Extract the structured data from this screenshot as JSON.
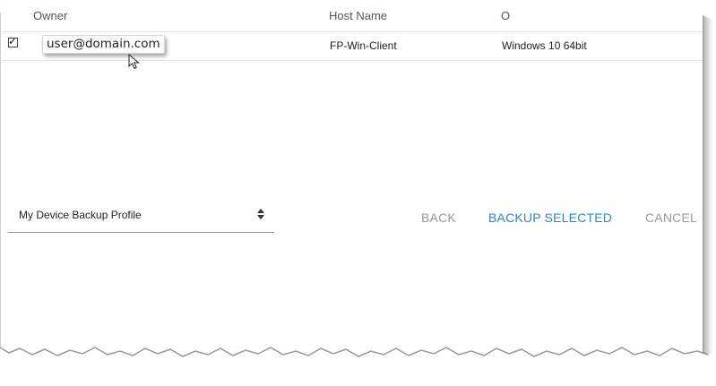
{
  "table": {
    "headers": {
      "owner": "Owner",
      "host_name": "Host Name",
      "os": "O"
    },
    "rows": [
      {
        "checked": true,
        "owner": "user@domain.com",
        "host_name": "FP-Win-Client",
        "os": "Windows 10 64bit"
      }
    ]
  },
  "profile_select": {
    "value": "My Device Backup Profile"
  },
  "actions": {
    "back_label": "BACK",
    "backup_label": "BACKUP SELECTED",
    "cancel_label": "CANCEL"
  },
  "colors": {
    "primary": "#2a88c6",
    "disabled": "#9a9a9a",
    "underline": "#5aa7e0"
  },
  "icons": {
    "checkbox": "checkbox-checked-icon",
    "cursor": "mouse-pointer-icon",
    "select": "sort-arrows-icon"
  }
}
